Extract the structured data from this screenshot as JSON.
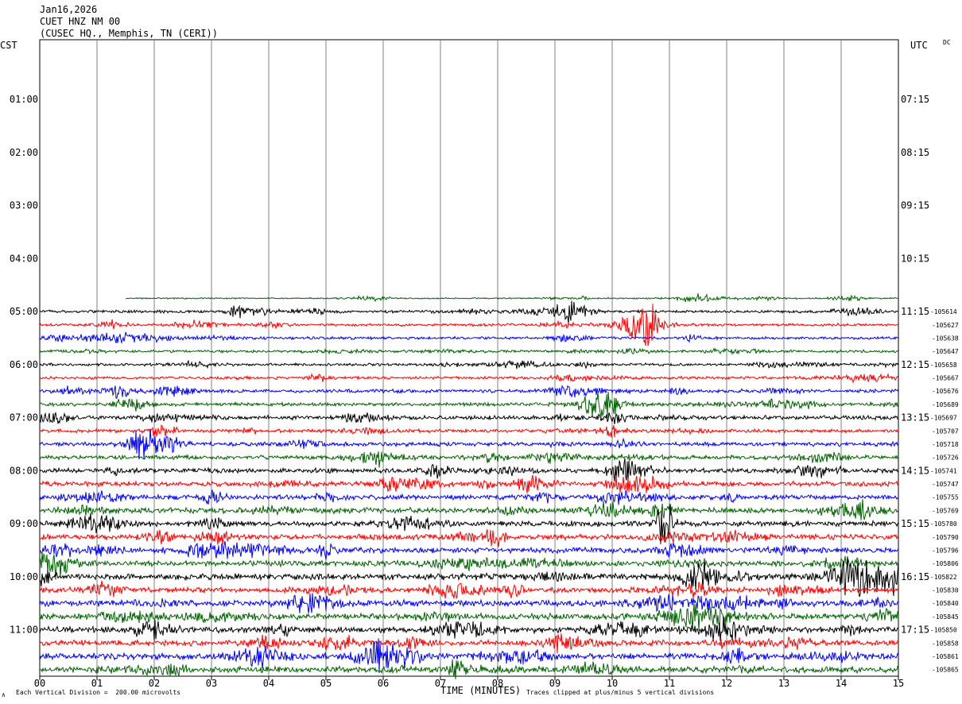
{
  "header": {
    "date": "Jan16,2026",
    "station": "CUET HNZ NM 00",
    "location": "(CUSEC HQ., Memphis, TN (CERI))"
  },
  "corner_labels": {
    "left_tz": "CST",
    "right_tz": "UTC",
    "mode": "DC"
  },
  "footer": {
    "scale_note": "Each Vertical Division =  200.00 microvolts",
    "clip_note": "Traces clipped at plus/minus 5 vertical divisions",
    "x_title": "TIME (MINUTES)",
    "corner_mark": "∧"
  },
  "chart_data": {
    "type": "line",
    "title": "CUET HNZ NM 00",
    "xlabel": "TIME (MINUTES)",
    "ylabel": "",
    "xlim": [
      0,
      15
    ],
    "x_ticks": [
      "00",
      "01",
      "02",
      "03",
      "04",
      "05",
      "06",
      "07",
      "08",
      "09",
      "10",
      "11",
      "12",
      "13",
      "14",
      "15"
    ],
    "grid": "vertical lines every minute",
    "row_count": 48,
    "row_minutes": 15,
    "color_cycle": [
      "#000000",
      "#ff0000",
      "#0000ff",
      "#006400"
    ],
    "left_time_labels": [
      {
        "row": 4,
        "text": "01:00"
      },
      {
        "row": 8,
        "text": "02:00"
      },
      {
        "row": 12,
        "text": "03:00"
      },
      {
        "row": 16,
        "text": "04:00"
      },
      {
        "row": 20,
        "text": "05:00"
      },
      {
        "row": 24,
        "text": "06:00"
      },
      {
        "row": 28,
        "text": "07:00"
      },
      {
        "row": 32,
        "text": "08:00"
      },
      {
        "row": 36,
        "text": "09:00"
      },
      {
        "row": 40,
        "text": "10:00"
      },
      {
        "row": 44,
        "text": "11:00"
      }
    ],
    "right_time_labels": [
      {
        "row": 4,
        "text": "07:15"
      },
      {
        "row": 8,
        "text": "08:15"
      },
      {
        "row": 12,
        "text": "09:15"
      },
      {
        "row": 16,
        "text": "10:15"
      },
      {
        "row": 20,
        "text": "11:15"
      },
      {
        "row": 24,
        "text": "12:15"
      },
      {
        "row": 28,
        "text": "13:15"
      },
      {
        "row": 32,
        "text": "14:15"
      },
      {
        "row": 36,
        "text": "15:15"
      },
      {
        "row": 40,
        "text": "16:15"
      },
      {
        "row": 44,
        "text": "17:15"
      }
    ],
    "dc_offsets": [
      {
        "row": 20,
        "text": "-105614"
      },
      {
        "row": 21,
        "text": "-105627"
      },
      {
        "row": 22,
        "text": "-105638"
      },
      {
        "row": 23,
        "text": "-105647"
      },
      {
        "row": 24,
        "text": "-105658"
      },
      {
        "row": 25,
        "text": "-105667"
      },
      {
        "row": 26,
        "text": "-105676"
      },
      {
        "row": 27,
        "text": "-105689"
      },
      {
        "row": 28,
        "text": "-105697"
      },
      {
        "row": 29,
        "text": "-105707"
      },
      {
        "row": 30,
        "text": "-105718"
      },
      {
        "row": 31,
        "text": "-105726"
      },
      {
        "row": 32,
        "text": "-105741"
      },
      {
        "row": 33,
        "text": "-105747"
      },
      {
        "row": 34,
        "text": "-105755"
      },
      {
        "row": 35,
        "text": "-105769"
      },
      {
        "row": 36,
        "text": "-105780"
      },
      {
        "row": 37,
        "text": "-105790"
      },
      {
        "row": 38,
        "text": "-105796"
      },
      {
        "row": 39,
        "text": "-105806"
      },
      {
        "row": 40,
        "text": "-105822"
      },
      {
        "row": 41,
        "text": "-105830"
      },
      {
        "row": 42,
        "text": "-105840"
      },
      {
        "row": 43,
        "text": "-105845"
      },
      {
        "row": 44,
        "text": "-105850"
      },
      {
        "row": 45,
        "text": "-105858"
      },
      {
        "row": 46,
        "text": "-105861"
      },
      {
        "row": 47,
        "text": "-105865"
      }
    ],
    "traces": [
      {
        "row": 19,
        "color": "#006400",
        "start_min": 1.5,
        "end_min": 15,
        "amplitude": 1
      },
      {
        "row": 20,
        "color": "#000000",
        "start_min": 0,
        "end_min": 15,
        "amplitude": 2
      },
      {
        "row": 21,
        "color": "#ff0000",
        "start_min": 0,
        "end_min": 15,
        "amplitude": 2
      },
      {
        "row": 22,
        "color": "#0000ff",
        "start_min": 0,
        "end_min": 15,
        "amplitude": 2
      },
      {
        "row": 23,
        "color": "#006400",
        "start_min": 0,
        "end_min": 15,
        "amplitude": 2
      },
      {
        "row": 24,
        "color": "#000000",
        "start_min": 0,
        "end_min": 15,
        "amplitude": 2
      },
      {
        "row": 25,
        "color": "#ff0000",
        "start_min": 0,
        "end_min": 15,
        "amplitude": 2
      },
      {
        "row": 26,
        "color": "#0000ff",
        "start_min": 0,
        "end_min": 15,
        "amplitude": 2.5
      },
      {
        "row": 27,
        "color": "#006400",
        "start_min": 0,
        "end_min": 15,
        "amplitude": 2.5
      },
      {
        "row": 28,
        "color": "#000000",
        "start_min": 0,
        "end_min": 15,
        "amplitude": 3
      },
      {
        "row": 29,
        "color": "#ff0000",
        "start_min": 0,
        "end_min": 15,
        "amplitude": 2.5
      },
      {
        "row": 30,
        "color": "#0000ff",
        "start_min": 0,
        "end_min": 15,
        "amplitude": 3
      },
      {
        "row": 31,
        "color": "#006400",
        "start_min": 0,
        "end_min": 15,
        "amplitude": 3
      },
      {
        "row": 32,
        "color": "#000000",
        "start_min": 0,
        "end_min": 15,
        "amplitude": 3.5
      },
      {
        "row": 33,
        "color": "#ff0000",
        "start_min": 0,
        "end_min": 15,
        "amplitude": 3.5
      },
      {
        "row": 34,
        "color": "#0000ff",
        "start_min": 0,
        "end_min": 15,
        "amplitude": 3.5
      },
      {
        "row": 35,
        "color": "#006400",
        "start_min": 0,
        "end_min": 15,
        "amplitude": 4
      },
      {
        "row": 36,
        "color": "#000000",
        "start_min": 0,
        "end_min": 15,
        "amplitude": 4
      },
      {
        "row": 37,
        "color": "#ff0000",
        "start_min": 0,
        "end_min": 15,
        "amplitude": 4
      },
      {
        "row": 38,
        "color": "#0000ff",
        "start_min": 0,
        "end_min": 15,
        "amplitude": 4
      },
      {
        "row": 39,
        "color": "#006400",
        "start_min": 0,
        "end_min": 15,
        "amplitude": 4
      },
      {
        "row": 40,
        "color": "#000000",
        "start_min": 0,
        "end_min": 15,
        "amplitude": 4.5
      },
      {
        "row": 41,
        "color": "#ff0000",
        "start_min": 0,
        "end_min": 15,
        "amplitude": 4
      },
      {
        "row": 42,
        "color": "#0000ff",
        "start_min": 0,
        "end_min": 15,
        "amplitude": 4.5
      },
      {
        "row": 43,
        "color": "#006400",
        "start_min": 0,
        "end_min": 15,
        "amplitude": 4.5
      },
      {
        "row": 44,
        "color": "#000000",
        "start_min": 0,
        "end_min": 15,
        "amplitude": 4.5
      },
      {
        "row": 45,
        "color": "#ff0000",
        "start_min": 0,
        "end_min": 15,
        "amplitude": 4
      },
      {
        "row": 46,
        "color": "#0000ff",
        "start_min": 0,
        "end_min": 15,
        "amplitude": 4.5
      },
      {
        "row": 47,
        "color": "#006400",
        "start_min": 0,
        "end_min": 15,
        "amplitude": 4.5
      }
    ]
  }
}
